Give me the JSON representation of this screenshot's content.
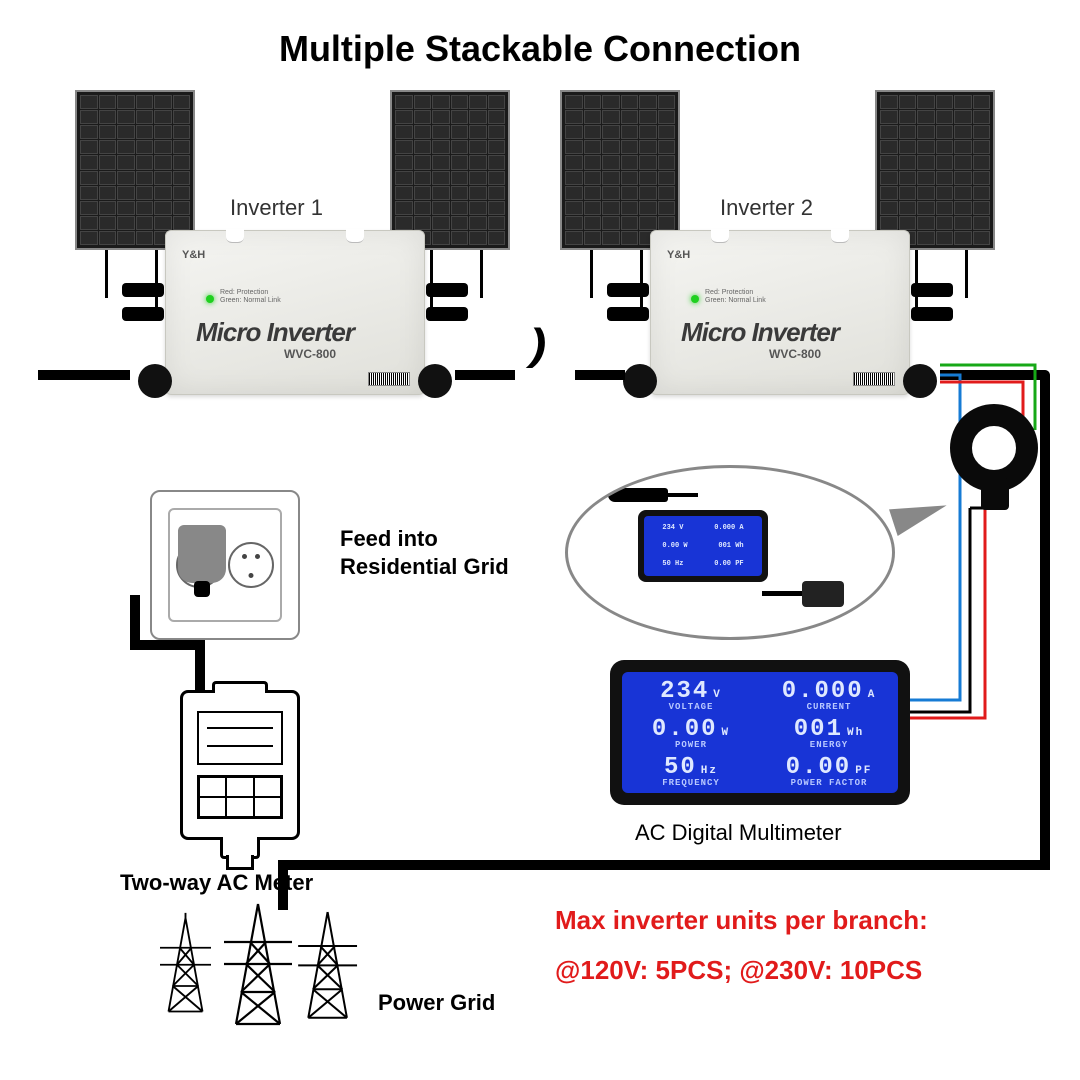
{
  "title": "Multiple Stackable Connection",
  "inverter": {
    "label1": "Inverter 1",
    "label2": "Inverter 2",
    "brand": "Y&H",
    "name": "Micro Inverter",
    "model": "WVC-800",
    "led_line1": "Red: Protection",
    "led_line2": "Green: Normal Link"
  },
  "labels": {
    "feed1": "Feed into",
    "feed2": "Residential Grid",
    "acmeter": "Two-way AC Meter",
    "grid": "Power Grid",
    "multimeter": "AC Digital Multimeter"
  },
  "multimeter": {
    "voltage_val": "234",
    "voltage_unit": "V",
    "current_val": "0.000",
    "current_unit": "A",
    "lab_voltage": "VOLTAGE",
    "lab_current": "CURRENT",
    "power_val": "0.00",
    "power_unit": "W",
    "energy_val": "001",
    "energy_unit": "Wh",
    "lab_power": "POWER",
    "lab_energy": "ENERGY",
    "freq_val": "50",
    "freq_unit": "Hz",
    "pf_val": "0.00",
    "pf_unit": "PF",
    "lab_freq": "FREQUENCY",
    "lab_pf": "POWER FACTOR",
    "lcd_bg": "#1834d6"
  },
  "note": {
    "line1": "Max inverter units per branch:",
    "line2": "@120V: 5PCS; @230V: 10PCS",
    "color": "#e11b1b"
  },
  "wires": {
    "green": "#17a817",
    "blue": "#167bd4",
    "red": "#e11b1b",
    "black": "#000000"
  }
}
